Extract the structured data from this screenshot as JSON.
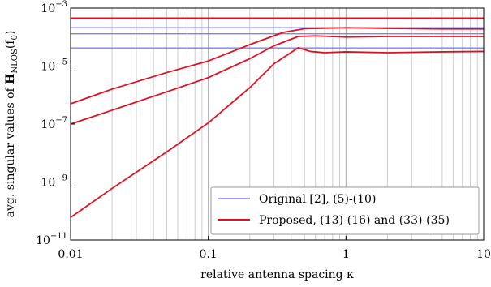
{
  "chart_data": {
    "type": "line",
    "xscale": "log",
    "yscale": "log",
    "xlim": [
      0.01,
      10
    ],
    "ylim": [
      1e-11,
      0.001
    ],
    "grid": "vertical minor and major",
    "legend_position": "bottom-right",
    "xlabel": "relative antenna spacing κ",
    "ylabel_prefix": "avg. singular values of ",
    "ylabel_math": "H",
    "ylabel_sub": "NLOS",
    "ylabel_suffix": "(f",
    "ylabel_suffix_sub": "0",
    "ylabel_end": ")",
    "x_ticks": [
      {
        "value": 0.01,
        "label": "0.01"
      },
      {
        "value": 0.1,
        "label": "0.1"
      },
      {
        "value": 1,
        "label": "1"
      },
      {
        "value": 10,
        "label": "10"
      }
    ],
    "y_ticks": [
      {
        "value": 1e-11,
        "base": "10",
        "exp": "−11"
      },
      {
        "value": 1e-09,
        "base": "10",
        "exp": "−9"
      },
      {
        "value": 1e-07,
        "base": "10",
        "exp": "−7"
      },
      {
        "value": 1e-05,
        "base": "10",
        "exp": "−5"
      },
      {
        "value": 0.001,
        "base": "10",
        "exp": "−3"
      }
    ],
    "colors": {
      "original": "#8080f0",
      "proposed": "#e01020"
    },
    "legend": [
      {
        "label": "Original [2], (5)-(10)",
        "series": "original"
      },
      {
        "label": "Proposed, (13)-(16) and (33)-(35)",
        "series": "proposed"
      }
    ],
    "series": [
      {
        "group": "original",
        "x": [
          0.01,
          10
        ],
        "y": [
          0.00042,
          0.00042
        ]
      },
      {
        "group": "original",
        "x": [
          0.01,
          10
        ],
        "y": [
          0.00021,
          0.00021
        ]
      },
      {
        "group": "original",
        "x": [
          0.01,
          10
        ],
        "y": [
          0.00013,
          0.00013
        ]
      },
      {
        "group": "original",
        "x": [
          0.01,
          10
        ],
        "y": [
          4.2e-05,
          4.2e-05
        ]
      },
      {
        "group": "proposed",
        "x": [
          0.01,
          0.1,
          1,
          10
        ],
        "y": [
          0.00045,
          0.00045,
          0.00045,
          0.00045
        ]
      },
      {
        "group": "proposed",
        "x": [
          0.01,
          0.02,
          0.05,
          0.1,
          0.2,
          0.35,
          0.5,
          1,
          2,
          5,
          10
        ],
        "y": [
          5e-07,
          1.6e-06,
          6e-06,
          1.5e-05,
          5.5e-05,
          0.000145,
          0.000195,
          0.00021,
          0.0002,
          0.00019,
          0.00019
        ]
      },
      {
        "group": "proposed",
        "x": [
          0.01,
          0.02,
          0.05,
          0.1,
          0.2,
          0.3,
          0.45,
          0.6,
          1,
          2,
          5,
          10
        ],
        "y": [
          1e-07,
          3e-07,
          1.3e-06,
          4e-06,
          1.8e-05,
          5e-05,
          0.000105,
          0.00011,
          0.0001,
          0.000105,
          0.000105,
          0.000105
        ]
      },
      {
        "group": "proposed",
        "x": [
          0.01,
          0.02,
          0.05,
          0.1,
          0.2,
          0.3,
          0.45,
          0.55,
          0.7,
          1,
          2,
          5,
          10
        ],
        "y": [
          6e-11,
          6e-10,
          1.1e-08,
          1.1e-07,
          1.8e-06,
          1.2e-05,
          4.3e-05,
          3.2e-05,
          2.9e-05,
          3.1e-05,
          2.9e-05,
          3.1e-05,
          3.2e-05
        ]
      }
    ]
  }
}
